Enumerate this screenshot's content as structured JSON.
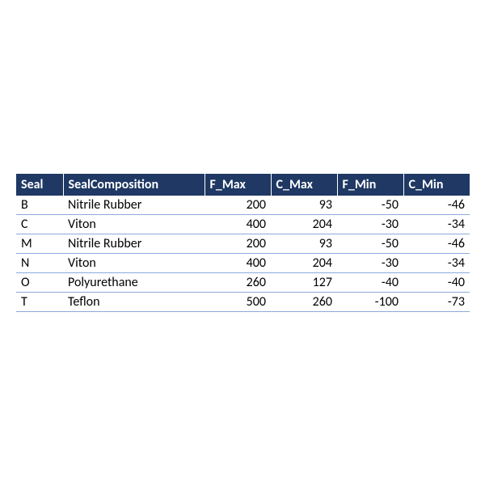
{
  "table": {
    "header_bg": "#1f3864",
    "header_fg": "#ffffff",
    "row_border_color": "#8ea9db",
    "body_text_color": "#000000",
    "font_family": "Calibri, Arial, sans-serif",
    "header_fontsize": 16,
    "cell_fontsize": 16,
    "columns": [
      {
        "key": "seal",
        "label": "Seal",
        "type": "txt",
        "cls": "col-seal"
      },
      {
        "key": "comp",
        "label": "SealComposition",
        "type": "txt",
        "cls": "col-comp"
      },
      {
        "key": "fmax",
        "label": "F_Max",
        "type": "num",
        "cls": "col-num"
      },
      {
        "key": "cmax",
        "label": "C_Max",
        "type": "num",
        "cls": "col-num"
      },
      {
        "key": "fmin",
        "label": "F_Min",
        "type": "num",
        "cls": "col-num"
      },
      {
        "key": "cmin",
        "label": "C_Min",
        "type": "num",
        "cls": "col-num"
      }
    ],
    "rows": [
      {
        "seal": "B",
        "comp": "Nitrile Rubber",
        "fmax": "200",
        "cmax": "93",
        "fmin": "-50",
        "cmin": "-46"
      },
      {
        "seal": "C",
        "comp": "Viton",
        "fmax": "400",
        "cmax": "204",
        "fmin": "-30",
        "cmin": "-34"
      },
      {
        "seal": "M",
        "comp": "Nitrile Rubber",
        "fmax": "200",
        "cmax": "93",
        "fmin": "-50",
        "cmin": "-46"
      },
      {
        "seal": "N",
        "comp": "Viton",
        "fmax": "400",
        "cmax": "204",
        "fmin": "-30",
        "cmin": "-34"
      },
      {
        "seal": "O",
        "comp": "Polyurethane",
        "fmax": "260",
        "cmax": "127",
        "fmin": "-40",
        "cmin": "-40"
      },
      {
        "seal": "T",
        "comp": "Teflon",
        "fmax": "500",
        "cmax": "260",
        "fmin": "-100",
        "cmin": "-73"
      }
    ]
  }
}
